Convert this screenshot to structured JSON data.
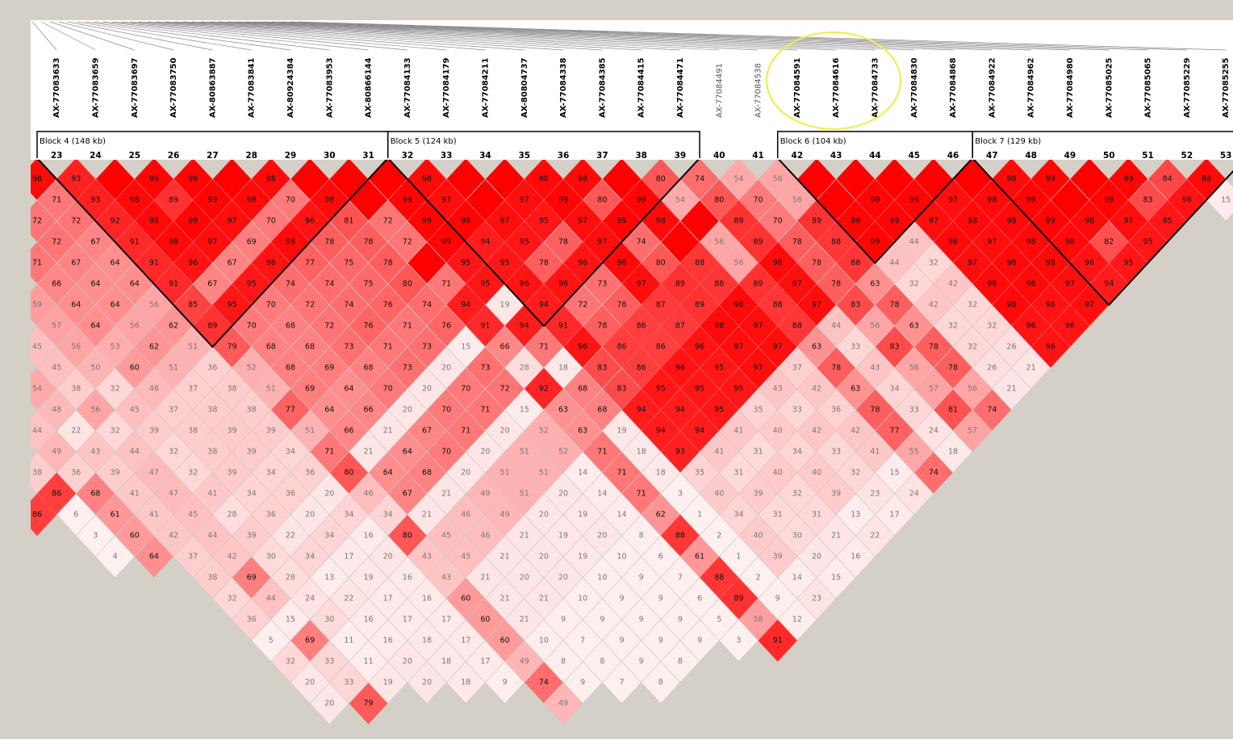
{
  "markers": [
    {
      "number": 23,
      "name": "AX-77083633"
    },
    {
      "number": 24,
      "name": "AX-77083659"
    },
    {
      "number": 25,
      "name": "AX-77083697"
    },
    {
      "number": 26,
      "name": "AX-77083750"
    },
    {
      "number": 27,
      "name": "AX-80863887"
    },
    {
      "number": 28,
      "name": "AX-77083841"
    },
    {
      "number": 29,
      "name": "AX-80924384"
    },
    {
      "number": 30,
      "name": "AX-77083953"
    },
    {
      "number": 31,
      "name": "AX-80866144"
    },
    {
      "number": 32,
      "name": "AX-77084133"
    },
    {
      "number": 33,
      "name": "AX-77084179"
    },
    {
      "number": 34,
      "name": "AX-77084211"
    },
    {
      "number": 35,
      "name": "AX-80804737"
    },
    {
      "number": 36,
      "name": "AX-77084338"
    },
    {
      "number": 37,
      "name": "AX-77084385"
    },
    {
      "number": 38,
      "name": "AX-77084415"
    },
    {
      "number": 39,
      "name": "AX-77084471"
    },
    {
      "number": 40,
      "name": "AX-77084491"
    },
    {
      "number": 41,
      "name": "AX-77084538"
    },
    {
      "number": 42,
      "name": "AX-77084591"
    },
    {
      "number": 43,
      "name": "AX-77084616"
    },
    {
      "number": 44,
      "name": "AX-77084733"
    },
    {
      "number": 45,
      "name": "AX-77084830"
    },
    {
      "number": 46,
      "name": "AX-77084868"
    },
    {
      "number": 47,
      "name": "AX-77084922"
    },
    {
      "number": 48,
      "name": "AX-77084962"
    },
    {
      "number": 49,
      "name": "AX-77084980"
    },
    {
      "number": 50,
      "name": "AX-77085025"
    },
    {
      "number": 51,
      "name": "AX-77085065"
    },
    {
      "number": 52,
      "name": "AX-77085229"
    },
    {
      "number": 53,
      "name": "AX-77085255"
    }
  ],
  "blocks": [
    {
      "label": "Block 4 (148 kb)",
      "first": 0,
      "last": 8
    },
    {
      "label": "Block 5 (124 kb)",
      "first": 9,
      "last": 16
    },
    {
      "label": "Block 6 (104 kb)",
      "first": 19,
      "last": 23
    },
    {
      "label": "Block 7 (129 kb)",
      "first": 24,
      "last": 30
    }
  ],
  "grid": [
    {
      "row": 1,
      "col": 0,
      "values": [
        98,
        93,
        null,
        99,
        99,
        null,
        98,
        null,
        null,
        null,
        98,
        null,
        null,
        98,
        98,
        null,
        80,
        74,
        54,
        56,
        null,
        null,
        null,
        null,
        null,
        98,
        99,
        null,
        99,
        84,
        98
      ]
    },
    {
      "row": 2,
      "col": 1,
      "values": [
        71,
        93,
        98,
        89,
        99,
        98,
        70,
        98,
        null,
        99,
        97,
        null,
        97,
        99,
        80,
        99,
        54,
        80,
        70,
        56,
        null,
        99,
        99,
        97,
        98,
        99,
        null,
        99,
        83,
        96,
        15
      ]
    },
    {
      "row": 3,
      "col": 0,
      "values": [
        72,
        72,
        92,
        98,
        99,
        97,
        70,
        96,
        81,
        72,
        99,
        99,
        97,
        95,
        97,
        99,
        98,
        null,
        89,
        70,
        89,
        99,
        99,
        97,
        98,
        98,
        99,
        98,
        97,
        95
      ]
    },
    {
      "row": 4,
      "col": 1,
      "values": [
        72,
        67,
        91,
        98,
        97,
        69,
        98,
        78,
        78,
        72,
        99,
        94,
        95,
        78,
        97,
        74,
        null,
        56,
        89,
        78,
        88,
        99,
        44,
        98,
        97,
        98,
        98,
        82,
        95
      ]
    },
    {
      "row": 5,
      "col": 0,
      "values": [
        71,
        67,
        64,
        91,
        96,
        67,
        96,
        77,
        75,
        78,
        null,
        95,
        95,
        78,
        96,
        98,
        80,
        88,
        56,
        98,
        78,
        88,
        44,
        32,
        97,
        98,
        98,
        96,
        95
      ]
    },
    {
      "row": 6,
      "col": 1,
      "values": [
        66,
        64,
        64,
        91,
        67,
        95,
        74,
        74,
        75,
        80,
        71,
        95,
        96,
        96,
        73,
        97,
        89,
        88,
        89,
        97,
        78,
        63,
        32,
        42,
        98,
        98,
        97,
        94
      ]
    },
    {
      "row": 7,
      "col": 0,
      "values": [
        59,
        64,
        64,
        56,
        85,
        95,
        70,
        72,
        74,
        76,
        74,
        94,
        19,
        94,
        72,
        78,
        87,
        89,
        98,
        88,
        97,
        83,
        78,
        42,
        32,
        98,
        96,
        97
      ]
    },
    {
      "row": 8,
      "col": 1,
      "values": [
        57,
        64,
        56,
        62,
        89,
        70,
        68,
        72,
        76,
        71,
        76,
        91,
        94,
        91,
        78,
        86,
        87,
        98,
        97,
        88,
        44,
        56,
        63,
        32,
        32,
        96,
        96
      ]
    },
    {
      "row": 9,
      "col": 0,
      "values": [
        45,
        56,
        53,
        62,
        51,
        79,
        68,
        68,
        73,
        71,
        73,
        15,
        66,
        71,
        96,
        86,
        86,
        96,
        97,
        97,
        63,
        33,
        83,
        78,
        32,
        26,
        96
      ]
    },
    {
      "row": 10,
      "col": 1,
      "values": [
        45,
        50,
        60,
        51,
        36,
        52,
        68,
        69,
        68,
        73,
        20,
        73,
        28,
        18,
        83,
        86,
        96,
        95,
        97,
        37,
        78,
        43,
        56,
        78,
        26,
        21
      ]
    },
    {
      "row": 11,
      "col": 0,
      "values": [
        54,
        38,
        32,
        48,
        37,
        38,
        51,
        69,
        64,
        70,
        20,
        70,
        72,
        92,
        68,
        83,
        95,
        95,
        95,
        43,
        42,
        63,
        34,
        57,
        56,
        21
      ]
    },
    {
      "row": 12,
      "col": 1,
      "values": [
        48,
        56,
        45,
        37,
        38,
        38,
        77,
        64,
        66,
        20,
        70,
        71,
        15,
        63,
        68,
        94,
        94,
        95,
        35,
        33,
        36,
        78,
        33,
        81,
        74
      ]
    },
    {
      "row": 13,
      "col": 0,
      "values": [
        44,
        22,
        32,
        39,
        38,
        39,
        39,
        51,
        66,
        21,
        67,
        71,
        20,
        52,
        63,
        19,
        94,
        94,
        41,
        40,
        42,
        42,
        77,
        24,
        57
      ]
    },
    {
      "row": 14,
      "col": 1,
      "values": [
        49,
        43,
        44,
        32,
        38,
        39,
        34,
        71,
        21,
        64,
        70,
        20,
        51,
        52,
        71,
        18,
        93,
        41,
        31,
        34,
        33,
        41,
        55,
        18
      ]
    },
    {
      "row": 15,
      "col": 0,
      "values": [
        38,
        36,
        39,
        47,
        32,
        39,
        34,
        36,
        80,
        64,
        68,
        20,
        51,
        51,
        14,
        71,
        18,
        35,
        31,
        40,
        40,
        32,
        15,
        74
      ]
    },
    {
      "row": 16,
      "col": 1,
      "values": [
        86,
        68,
        41,
        47,
        41,
        34,
        36,
        20,
        46,
        67,
        21,
        49,
        51,
        20,
        14,
        71,
        3,
        40,
        39,
        32,
        39,
        23,
        24
      ]
    },
    {
      "row": 17,
      "col": 0,
      "values": [
        86,
        6,
        61,
        41,
        45,
        28,
        36,
        20,
        34,
        34,
        21,
        46,
        49,
        20,
        19,
        14,
        62,
        1,
        34,
        31,
        31,
        13,
        17
      ]
    },
    {
      "row": 18,
      "col": 3,
      "values": [
        3,
        60,
        42,
        44,
        39,
        22,
        34,
        16,
        80,
        45,
        46,
        21,
        19,
        20,
        8,
        88,
        2,
        40,
        30,
        21,
        22
      ]
    },
    {
      "row": 19,
      "col": 4,
      "values": [
        4,
        64,
        37,
        42,
        30,
        34,
        17,
        20,
        43,
        45,
        21,
        20,
        19,
        10,
        6,
        61,
        1,
        39,
        20,
        16
      ]
    },
    {
      "row": 20,
      "col": 9,
      "values": [
        38,
        69,
        28,
        13,
        19,
        16,
        43,
        21,
        20,
        20,
        10,
        9,
        7,
        88,
        2,
        14,
        15
      ]
    },
    {
      "row": 21,
      "col": 10,
      "values": [
        32,
        44,
        24,
        22,
        17,
        16,
        60,
        21,
        21,
        10,
        9,
        9,
        6,
        89,
        9,
        23
      ]
    },
    {
      "row": 22,
      "col": 11,
      "values": [
        36,
        15,
        30,
        16,
        17,
        17,
        60,
        21,
        9,
        9,
        9,
        9,
        5,
        58,
        12
      ]
    },
    {
      "row": 23,
      "col": 12,
      "values": [
        5,
        69,
        11,
        16,
        18,
        17,
        60,
        10,
        7,
        9,
        9,
        9,
        3,
        91
      ]
    },
    {
      "row": 24,
      "col": 13,
      "values": [
        32,
        33,
        11,
        20,
        18,
        17,
        49,
        8,
        8,
        9,
        8
      ]
    },
    {
      "row": 25,
      "col": 14,
      "values": [
        20,
        33,
        19,
        20,
        18,
        9,
        74,
        9,
        7,
        8
      ]
    },
    {
      "row": 26,
      "col": 15,
      "values": [
        20,
        79
      ]
    },
    {
      "row": 26,
      "col": 27,
      "values": [
        49
      ]
    }
  ]
}
